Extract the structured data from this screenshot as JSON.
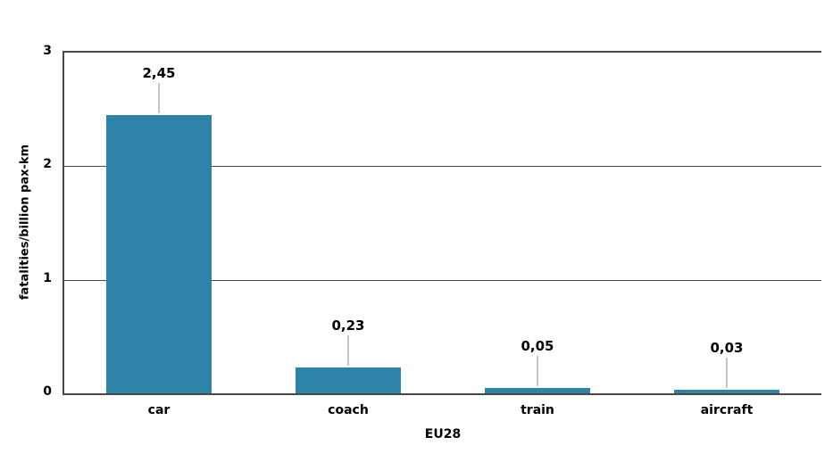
{
  "chart_data": {
    "type": "bar",
    "title": "",
    "xlabel": "EU28",
    "ylabel": "fatalities/billion pax-km",
    "categories": [
      "car",
      "coach",
      "train",
      "aircraft"
    ],
    "values": [
      2.45,
      0.23,
      0.05,
      0.03
    ],
    "value_labels": [
      "2,45",
      "0,23",
      "0,05",
      "0,03"
    ],
    "ylim": [
      0,
      3
    ],
    "yticks": [
      0,
      1,
      2,
      3
    ],
    "grid": "horizontal gridlines on",
    "legend": "none",
    "decimal_separator": "comma",
    "colors": {
      "bar": "#2e84a8",
      "axis": "#474747",
      "gridline": "#4a4a4a",
      "leader_line": "#c6c6c6",
      "text": "#000000",
      "background": "#ffffff"
    }
  }
}
